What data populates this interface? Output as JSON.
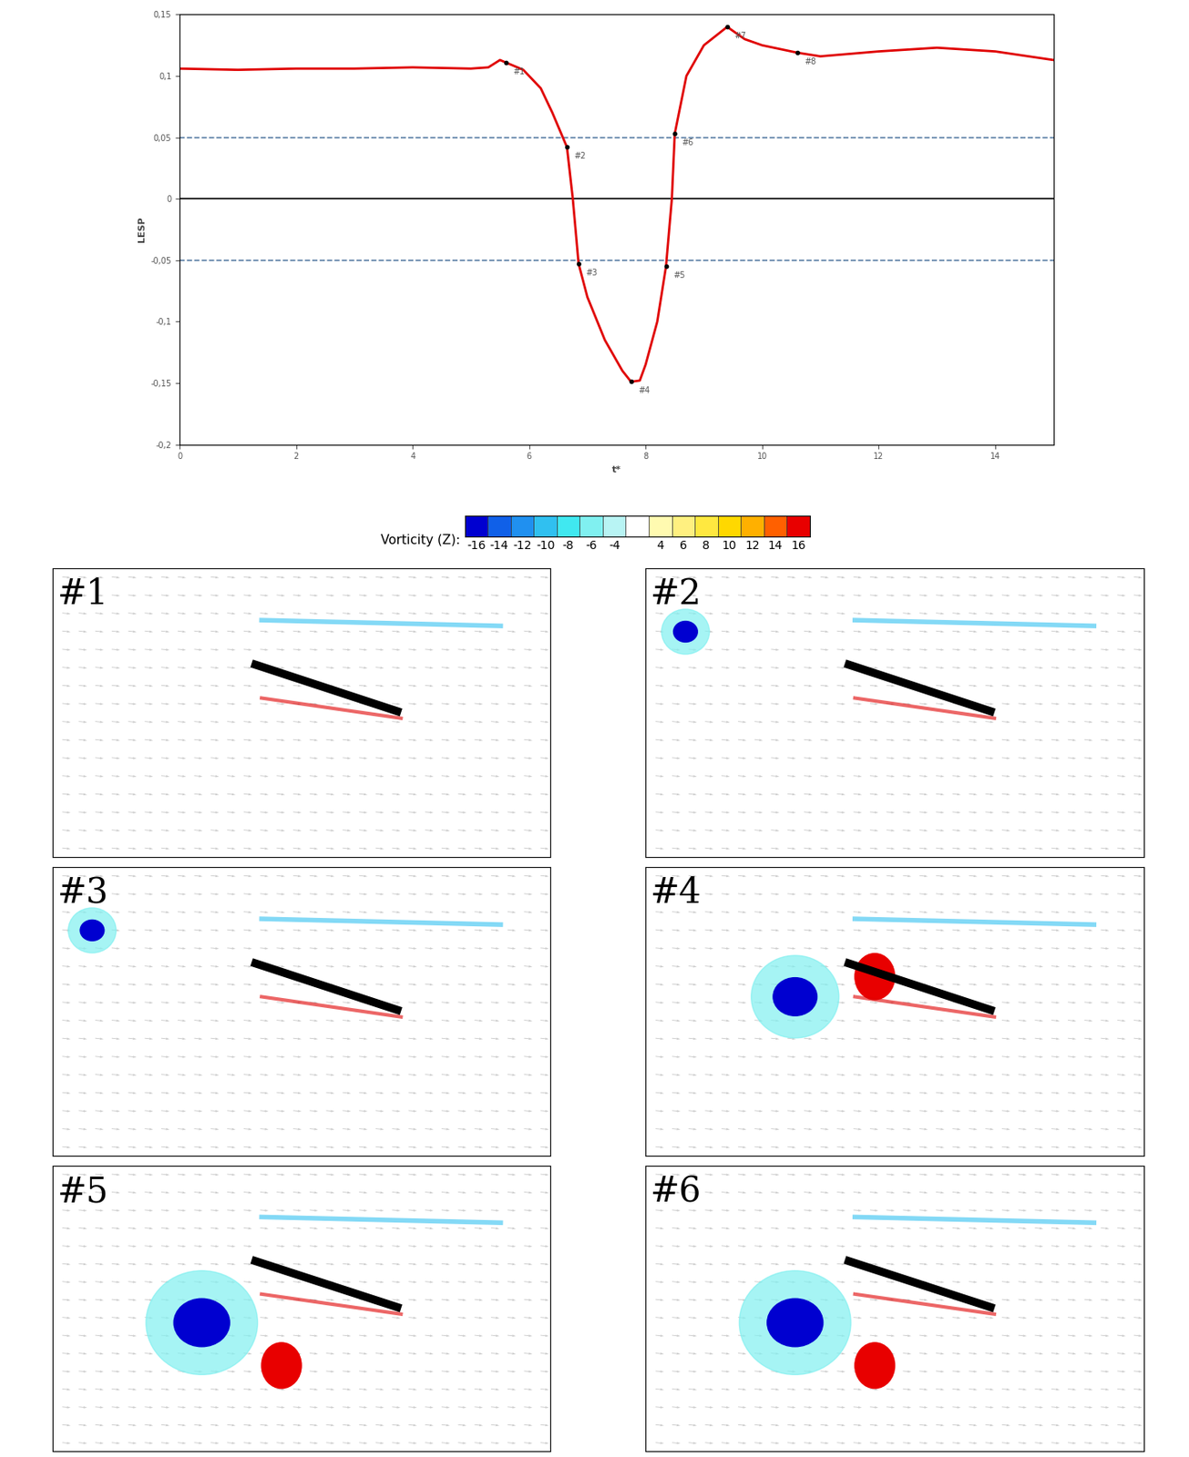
{
  "chart_data": {
    "type": "line",
    "x_label": "t*",
    "y_label": "LESP",
    "xlim": [
      0,
      15
    ],
    "xticks": [
      0,
      2,
      4,
      6,
      8,
      10,
      12,
      14
    ],
    "ylim": [
      -0.2,
      0.15
    ],
    "yticks": [
      {
        "value": -0.2,
        "label": "-0,2"
      },
      {
        "value": -0.15,
        "label": "-0,15"
      },
      {
        "value": -0.1,
        "label": "-0,1"
      },
      {
        "value": -0.05,
        "label": "-0,05"
      },
      0,
      {
        "value": 0.05,
        "label": "0,05"
      },
      {
        "value": 0.1,
        "label": "0,1"
      },
      {
        "value": 0.15,
        "label": "0,15"
      }
    ],
    "series": [
      {
        "name": "LESP",
        "color": "#e00000",
        "x": [
          0,
          1,
          2,
          3,
          4,
          5,
          5.3,
          5.5,
          5.6,
          5.9,
          6.2,
          6.4,
          6.65,
          6.75,
          6.85,
          7.0,
          7.3,
          7.6,
          7.75,
          7.9,
          8.0,
          8.2,
          8.35,
          8.45,
          8.5,
          8.7,
          9.0,
          9.4,
          9.7,
          10.0,
          10.6,
          11.0,
          12.0,
          13.0,
          14.0,
          15.0
        ],
        "values": [
          0.106,
          0.105,
          0.106,
          0.106,
          0.107,
          0.106,
          0.107,
          0.113,
          0.111,
          0.105,
          0.09,
          0.07,
          0.042,
          0.0,
          -0.053,
          -0.08,
          -0.115,
          -0.14,
          -0.149,
          -0.148,
          -0.135,
          -0.1,
          -0.055,
          0.0,
          0.053,
          0.1,
          0.125,
          0.14,
          0.13,
          0.125,
          0.119,
          0.116,
          0.12,
          0.123,
          0.12,
          0.113
        ]
      }
    ],
    "reference_lines": [
      {
        "y": 0.05,
        "color": "#5b7fa6",
        "line_style": "dashed"
      },
      {
        "y": -0.05,
        "color": "#5b7fa6",
        "line_style": "dashed"
      },
      {
        "y": 0,
        "color": "#000000",
        "line_style": "solid"
      }
    ],
    "annotations": [
      {
        "text": "#1",
        "x": 5.6,
        "y": 0.111
      },
      {
        "text": "#2",
        "x": 6.65,
        "y": 0.042
      },
      {
        "text": "#3",
        "x": 6.85,
        "y": -0.053
      },
      {
        "text": "#4",
        "x": 7.75,
        "y": -0.149
      },
      {
        "text": "#5",
        "x": 8.35,
        "y": -0.055
      },
      {
        "text": "#6",
        "x": 8.5,
        "y": 0.053
      },
      {
        "text": "#7",
        "x": 9.4,
        "y": 0.14
      },
      {
        "text": "#8",
        "x": 10.6,
        "y": 0.119
      }
    ]
  },
  "colorbar": {
    "label": "Vorticity (Z):",
    "ticks": [
      -16,
      -14,
      -12,
      -10,
      -8,
      -6,
      -4,
      4,
      6,
      8,
      10,
      12,
      14,
      16
    ],
    "colors": [
      "#0000d0",
      "#1060e8",
      "#2090f0",
      "#30c0f0",
      "#40e8f0",
      "#80f0f0",
      "#b8f4f4",
      "#ffffff",
      "#fffab0",
      "#fff080",
      "#ffe840",
      "#ffd800",
      "#ffb000",
      "#ff6000",
      "#e80000"
    ]
  },
  "panels": [
    "#1",
    "#2",
    "#3",
    "#4",
    "#5",
    "#6"
  ]
}
